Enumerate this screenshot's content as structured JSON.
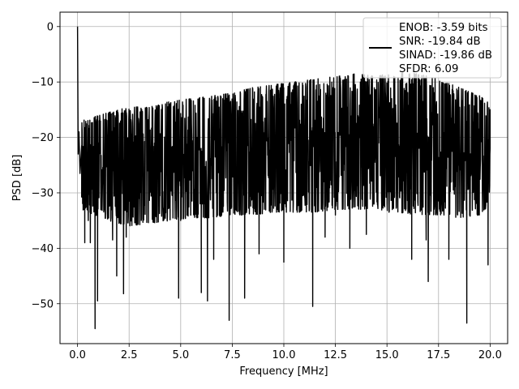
{
  "chart_data": {
    "type": "line",
    "title": "",
    "xlabel": "Frequency [MHz]",
    "ylabel": "PSD [dB]",
    "xlim": [
      -0.85,
      20.85
    ],
    "ylim": [
      -57.2,
      2.6
    ],
    "xticks": [
      0.0,
      2.5,
      5.0,
      7.5,
      10.0,
      12.5,
      15.0,
      17.5,
      20.0
    ],
    "xtick_labels": [
      "0.0",
      "2.5",
      "5.0",
      "7.5",
      "10.0",
      "12.5",
      "15.0",
      "17.5",
      "20.0"
    ],
    "yticks": [
      0,
      -10,
      -20,
      -30,
      -40,
      -50
    ],
    "ytick_labels": [
      "0",
      "−10",
      "−20",
      "−30",
      "−40",
      "−50"
    ],
    "grid": true,
    "legend_position": "top-right",
    "legend_entries": [
      "ENOB: -3.59 bits",
      "SNR: -19.84 dB",
      "SINAD: -19.86 dB",
      "SFDR: 6.09"
    ],
    "series": [
      {
        "color": "#000000",
        "baseline_db": -22,
        "x": [
          0.0,
          0.03,
          0.07,
          0.12,
          0.2,
          0.35,
          0.52,
          0.62,
          0.85,
          0.97,
          1.7,
          1.9,
          2.23,
          2.36,
          2.5,
          4.9,
          5.0,
          6.0,
          6.3,
          6.6,
          7.35,
          8.1,
          8.8,
          10.0,
          11.4,
          12.0,
          12.5,
          13.2,
          14.0,
          15.1,
          16.2,
          16.9,
          17.0,
          18.0,
          18.87,
          19.9,
          20.0
        ],
        "y": [
          0.0,
          -23.0,
          -19.0,
          -26.5,
          -21.5,
          -39.0,
          -35.0,
          -39.0,
          -54.5,
          -49.5,
          -38.5,
          -45.0,
          -48.2,
          -38.0,
          -31.5,
          -49.0,
          -35.0,
          -48.0,
          -49.5,
          -42.0,
          -53.0,
          -49.0,
          -41.0,
          -42.5,
          -50.5,
          -38.0,
          -34.0,
          -40.0,
          -37.5,
          -33.5,
          -42.0,
          -38.5,
          -46.0,
          -42.0,
          -53.5,
          -43.0,
          -22.0
        ],
        "envelope": {
          "x": [
            0.2,
            1.5,
            2.5,
            3.5,
            4.5,
            5.5,
            6.5,
            7.5,
            8.5,
            9.5,
            10.5,
            11.5,
            12.5,
            13.5,
            14.5,
            15.5,
            16.5,
            17.5,
            18.5,
            19.5,
            20.0
          ],
          "upper": [
            -17.0,
            -15.5,
            -14.5,
            -14.5,
            -13.5,
            -13.0,
            -12.5,
            -12.0,
            -11.0,
            -10.5,
            -10.0,
            -9.5,
            -9.0,
            -8.5,
            -9.0,
            -8.0,
            -8.5,
            -9.5,
            -11.0,
            -12.5,
            -14.0
          ],
          "lower": [
            -33.0,
            -35.0,
            -36.0,
            -35.5,
            -35.0,
            -34.5,
            -34.5,
            -34.0,
            -34.0,
            -33.5,
            -33.5,
            -33.5,
            -33.0,
            -33.0,
            -33.0,
            -33.5,
            -34.0,
            -34.0,
            -34.5,
            -34.0,
            -32.0
          ]
        }
      }
    ]
  }
}
